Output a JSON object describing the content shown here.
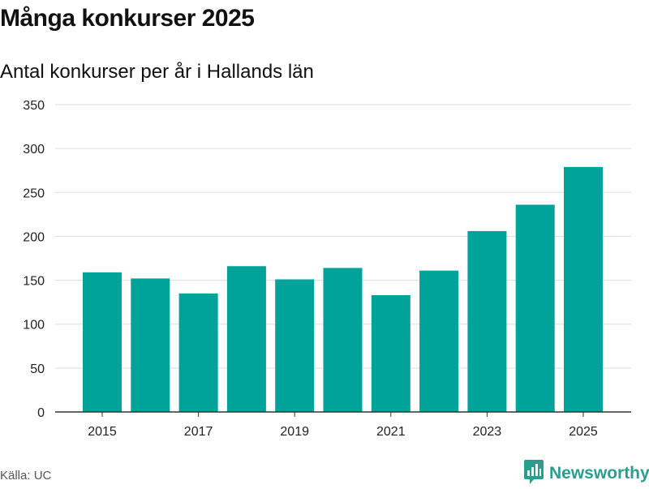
{
  "title": "Många konkurser 2025",
  "subtitle": "Antal konkurser per år i Hallands län",
  "source": "Källa: UC",
  "brand": {
    "name": "Newsworthy",
    "icon": "newsworthy-logo-icon",
    "color": "#2a9d8f"
  },
  "chart_data": {
    "type": "bar",
    "categories": [
      "2015",
      "2016",
      "2017",
      "2018",
      "2019",
      "2020",
      "2021",
      "2022",
      "2023",
      "2024",
      "2025"
    ],
    "values": [
      159,
      152,
      135,
      166,
      151,
      164,
      133,
      161,
      206,
      236,
      279
    ],
    "x_tick_labels": [
      "2015",
      "2017",
      "2019",
      "2021",
      "2023",
      "2025"
    ],
    "y_ticks": [
      0,
      50,
      100,
      150,
      200,
      250,
      300,
      350
    ],
    "ylim": [
      0,
      350
    ],
    "grid": true,
    "bar_color": "#00a39a"
  }
}
